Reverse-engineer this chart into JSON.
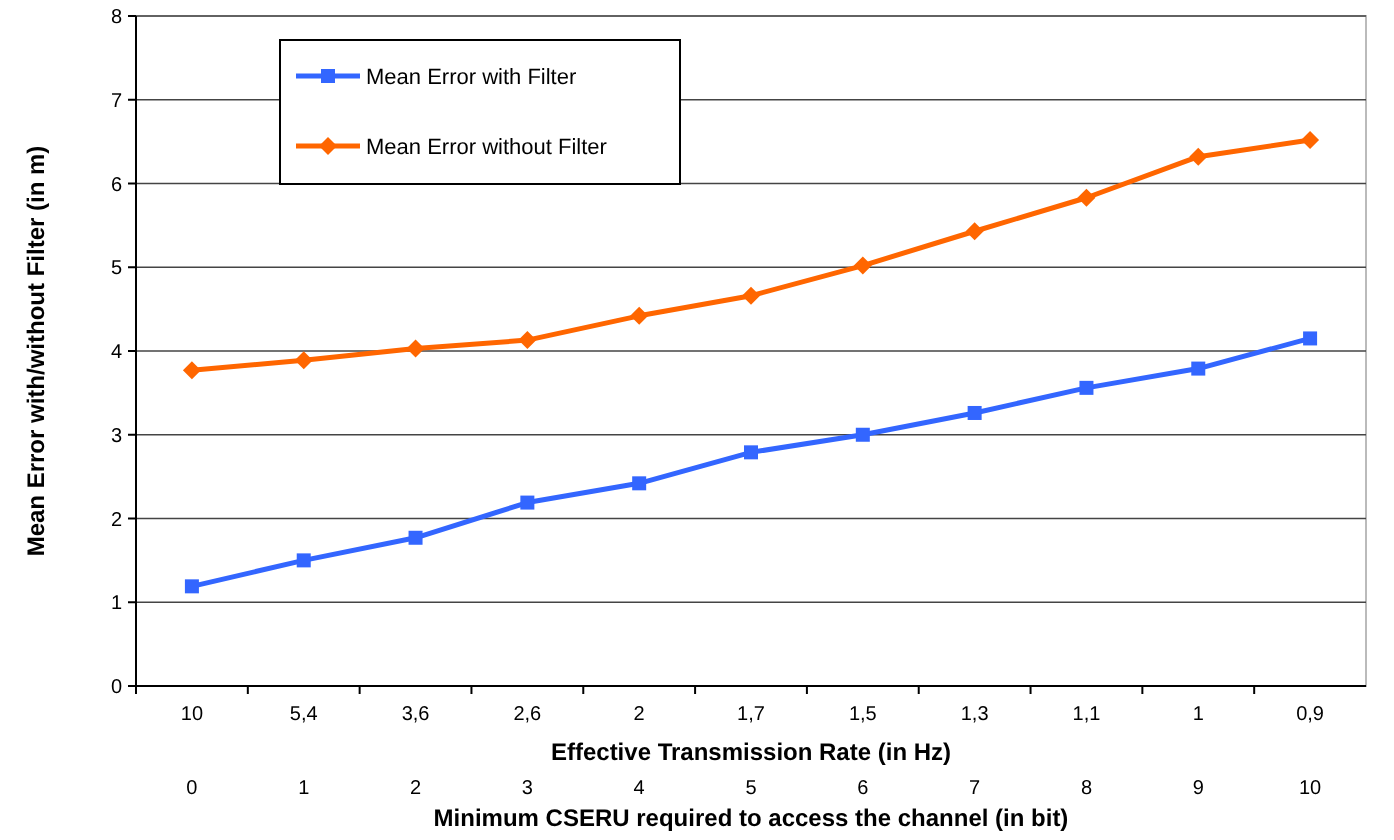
{
  "chart_data": {
    "type": "line",
    "xlabel": "Effective Transmission Rate (in Hz)",
    "x2label": "Minimum CSERU required to access the channel (in bit)",
    "ylabel": "Mean Error with/without Filter (in m)",
    "categories": [
      "10",
      "5,4",
      "3,6",
      "2,6",
      "2",
      "1,7",
      "1,5",
      "1,3",
      "1,1",
      "1",
      "0,9"
    ],
    "x2lim": [
      -0.5,
      10.5
    ],
    "x2ticks": [
      0,
      1,
      2,
      3,
      4,
      5,
      6,
      7,
      8,
      9,
      10
    ],
    "ylim": [
      0,
      8
    ],
    "yticks": [
      0,
      1,
      2,
      3,
      4,
      5,
      6,
      7,
      8
    ],
    "grid": "y",
    "legend": "top left",
    "line_style": "solid",
    "series": [
      {
        "name": "Mean Error with Filter",
        "color": "#3366ff",
        "marker": "square",
        "values": [
          1.19,
          1.5,
          1.77,
          2.19,
          2.42,
          2.79,
          3.0,
          3.26,
          3.56,
          3.79,
          4.15
        ]
      },
      {
        "name": "Mean Error without Filter",
        "color": "#ff6600",
        "marker": "diamond",
        "values": [
          3.77,
          3.89,
          4.03,
          4.13,
          4.42,
          4.66,
          5.02,
          5.43,
          5.83,
          6.32,
          6.52
        ]
      }
    ]
  }
}
